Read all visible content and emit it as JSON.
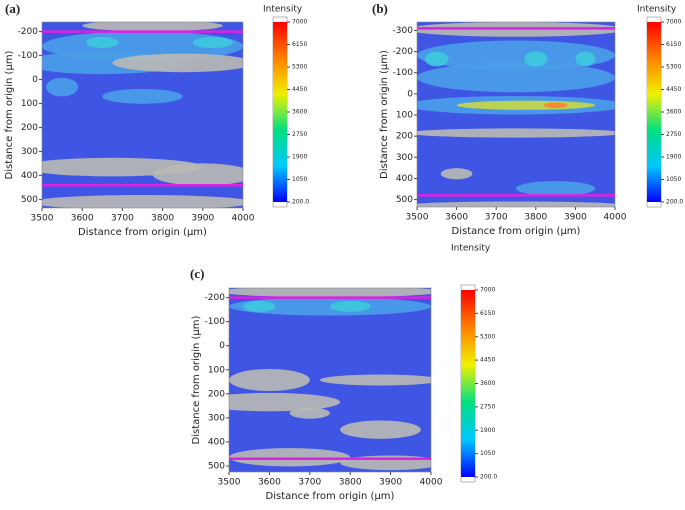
{
  "chart_data": [
    {
      "type": "contour",
      "panel": "(a)",
      "xlabel": "Distance from origin (μm)",
      "ylabel": "Distance from origin (μm)",
      "xlim": [
        3500,
        4000
      ],
      "xticks": [
        3500,
        3600,
        3700,
        3800,
        3900,
        4000
      ],
      "ylim": [
        -240,
        535
      ],
      "yticks": [
        -200,
        -100,
        0,
        100,
        200,
        300,
        400,
        500
      ],
      "lines": {
        "color": "#e020e0",
        "values": [
          -200,
          440
        ]
      },
      "colorbar": {
        "title": "Intensity",
        "zlim": [
          200,
          7000
        ],
        "colors": [
          "#0000ff",
          "#00c8ff",
          "#00e080",
          "#f0f000",
          "#ff8000",
          "#ff0000"
        ],
        "ticks": [
          7000,
          6150,
          5300,
          4450,
          3600,
          2750,
          1900,
          1050,
          {
            "value": 200,
            "label": "200.0"
          }
        ]
      }
    },
    {
      "type": "contour",
      "panel": "(b)",
      "xlabel": "Distance from origin (μm)",
      "ylabel": "Distance from origin (μm)",
      "xlim": [
        3500,
        4000
      ],
      "xticks": [
        3500,
        3600,
        3700,
        3800,
        3900,
        4000
      ],
      "ylim": [
        -340,
        535
      ],
      "yticks": [
        -300,
        -200,
        -100,
        0,
        100,
        200,
        300,
        400,
        500
      ],
      "lines": {
        "color": "#e020e0",
        "values": [
          -310,
          480
        ]
      },
      "colorbar": {
        "title": "Intensity",
        "zlim": [
          200,
          7000
        ],
        "colors": [
          "#0000ff",
          "#00c8ff",
          "#00e080",
          "#f0f000",
          "#ff8000",
          "#ff0000"
        ],
        "ticks": [
          7000,
          6150,
          5300,
          4450,
          3600,
          2750,
          1900,
          1050,
          {
            "value": 200,
            "label": "200.0"
          }
        ]
      }
    },
    {
      "type": "contour",
      "panel": "(c)",
      "xlabel": "Distance from origin (μm)",
      "ylabel": "Distance from origin (μm)",
      "xlim": [
        3500,
        4000
      ],
      "xticks": [
        3500,
        3600,
        3700,
        3800,
        3900,
        4000
      ],
      "ylim": [
        -240,
        525
      ],
      "yticks": [
        -200,
        -100,
        0,
        100,
        200,
        300,
        400,
        500
      ],
      "lines": {
        "color": "#e020e0",
        "values": [
          -200,
          470
        ]
      },
      "colorbar": {
        "title": "Intensity",
        "zlim": [
          200,
          7000
        ],
        "colors": [
          "#0000ff",
          "#00c8ff",
          "#00e080",
          "#f0f000",
          "#ff8000",
          "#ff0000"
        ],
        "ticks": [
          7000,
          6150,
          5300,
          4450,
          3600,
          2750,
          1900,
          1050,
          {
            "value": 200,
            "label": "200.0"
          }
        ]
      }
    }
  ]
}
